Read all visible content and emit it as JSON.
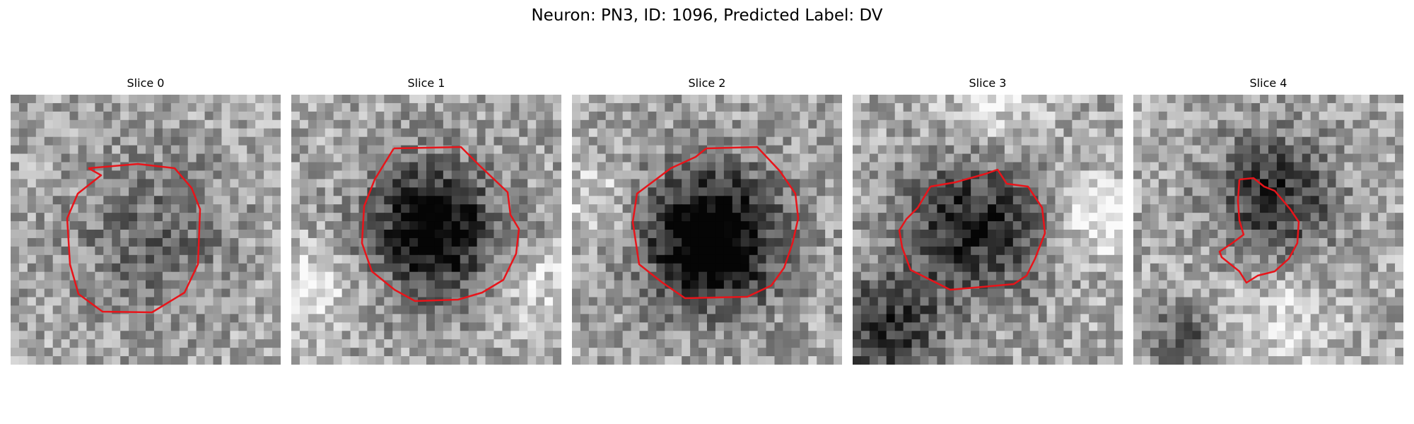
{
  "figure": {
    "title": "Neuron: PN3, ID: 1096, Predicted Label: DV"
  },
  "panels": [
    {
      "title": "Slice 0"
    },
    {
      "title": "Slice 1"
    },
    {
      "title": "Slice 2"
    },
    {
      "title": "Slice 3"
    },
    {
      "title": "Slice 4"
    }
  ],
  "colors": {
    "contour": "#e8141a",
    "background": "#ffffff"
  }
}
